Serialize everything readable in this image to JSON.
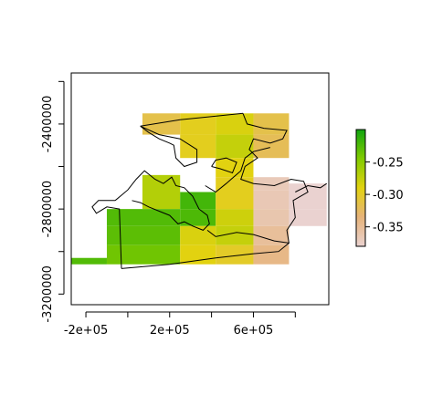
{
  "chart_data": {
    "type": "heatmap",
    "title": "",
    "xlabel": "",
    "ylabel": "",
    "xlim": [
      -270000,
      960000
    ],
    "ylim": [
      -3250000,
      -2160000
    ],
    "x_ticks": [
      {
        "value": -200000,
        "label": "-2e+05"
      },
      {
        "value": 200000,
        "label": "2e+05"
      },
      {
        "value": 600000,
        "label": "6e+05"
      }
    ],
    "x_minor_ticks": [
      0,
      400000,
      800000
    ],
    "y_ticks": [
      {
        "value": -2400000,
        "label": "-2400000"
      },
      {
        "value": -2800000,
        "label": "-2800000"
      },
      {
        "value": -3200000,
        "label": "-3200000"
      }
    ],
    "y_minor_ticks": [
      -2200000,
      -2600000,
      -3000000
    ],
    "legend": {
      "position": "right",
      "min": -0.38,
      "max": -0.2,
      "ticks": [
        {
          "value": -0.25,
          "label": "-0.25"
        },
        {
          "value": -0.3,
          "label": "-0.30"
        },
        {
          "value": -0.35,
          "label": "-0.35"
        }
      ],
      "colors": [
        "#ead2d0",
        "#e6b37a",
        "#e2d210",
        "#82cb00",
        "#10a510"
      ]
    },
    "grid": false,
    "cells": [
      {
        "x0": 70000,
        "x1": 250000,
        "y0": -2450000,
        "y1": -2350000,
        "value": -0.315
      },
      {
        "x0": 250000,
        "x1": 420000,
        "y0": -2450000,
        "y1": -2350000,
        "value": -0.296
      },
      {
        "x0": 420000,
        "x1": 600000,
        "y0": -2450000,
        "y1": -2350000,
        "value": -0.286
      },
      {
        "x0": 600000,
        "x1": 770000,
        "y0": -2450000,
        "y1": -2350000,
        "value": -0.315
      },
      {
        "x0": 250000,
        "x1": 420000,
        "y0": -2560000,
        "y1": -2450000,
        "value": -0.296
      },
      {
        "x0": 420000,
        "x1": 600000,
        "y0": -2560000,
        "y1": -2450000,
        "value": -0.276
      },
      {
        "x0": 600000,
        "x1": 770000,
        "y0": -2560000,
        "y1": -2450000,
        "value": -0.32
      },
      {
        "x0": 420000,
        "x1": 600000,
        "y0": -2650000,
        "y1": -2560000,
        "value": -0.29
      },
      {
        "x0": 70000,
        "x1": 250000,
        "y0": -2800000,
        "y1": -2640000,
        "value": -0.268
      },
      {
        "x0": 250000,
        "x1": 420000,
        "y0": -2800000,
        "y1": -2720000,
        "value": -0.22
      },
      {
        "x0": 420000,
        "x1": 600000,
        "y0": -2800000,
        "y1": -2650000,
        "value": -0.296
      },
      {
        "x0": 600000,
        "x1": 770000,
        "y0": -2710000,
        "y1": -2650000,
        "value": -0.368
      },
      {
        "x0": 600000,
        "x1": 770000,
        "y0": -2800000,
        "y1": -2710000,
        "value": -0.366
      },
      {
        "x0": 770000,
        "x1": 950000,
        "y0": -2800000,
        "y1": -2680000,
        "value": -0.38
      },
      {
        "x0": -100000,
        "x1": 250000,
        "y0": -2880000,
        "y1": -2800000,
        "value": -0.226
      },
      {
        "x0": 250000,
        "x1": 420000,
        "y0": -2880000,
        "y1": -2800000,
        "value": -0.224
      },
      {
        "x0": 420000,
        "x1": 600000,
        "y0": -2880000,
        "y1": -2800000,
        "value": -0.28
      },
      {
        "x0": 600000,
        "x1": 770000,
        "y0": -2880000,
        "y1": -2800000,
        "value": -0.362
      },
      {
        "x0": 770000,
        "x1": 950000,
        "y0": -2880000,
        "y1": -2800000,
        "value": -0.38
      },
      {
        "x0": -100000,
        "x1": 250000,
        "y0": -2970000,
        "y1": -2880000,
        "value": -0.23
      },
      {
        "x0": 250000,
        "x1": 420000,
        "y0": -2970000,
        "y1": -2880000,
        "value": -0.286
      },
      {
        "x0": 420000,
        "x1": 600000,
        "y0": -2970000,
        "y1": -2880000,
        "value": -0.276
      },
      {
        "x0": 600000,
        "x1": 770000,
        "y0": -2970000,
        "y1": -2880000,
        "value": -0.352
      },
      {
        "x0": -100000,
        "x1": 250000,
        "y0": -3060000,
        "y1": -2970000,
        "value": -0.238
      },
      {
        "x0": 250000,
        "x1": 420000,
        "y0": -3060000,
        "y1": -2970000,
        "value": -0.29
      },
      {
        "x0": 420000,
        "x1": 600000,
        "y0": -3060000,
        "y1": -2970000,
        "value": -0.3
      },
      {
        "x0": 600000,
        "x1": 770000,
        "y0": -3060000,
        "y1": -2970000,
        "value": -0.342
      },
      {
        "x0": -270000,
        "x1": -100000,
        "y0": -3060000,
        "y1": -3030000,
        "value": -0.226
      }
    ],
    "outlines": [
      [
        [
          60000,
          -2410000
        ],
        [
          150000,
          -2450000
        ],
        [
          250000,
          -2470000
        ],
        [
          330000,
          -2520000
        ],
        [
          330000,
          -2580000
        ],
        [
          270000,
          -2600000
        ],
        [
          230000,
          -2560000
        ],
        [
          220000,
          -2500000
        ],
        [
          200000,
          -2490000
        ],
        [
          150000,
          -2470000
        ],
        [
          100000,
          -2440000
        ],
        [
          60000,
          -2410000
        ]
      ],
      [
        [
          60000,
          -2410000
        ],
        [
          250000,
          -2380000
        ],
        [
          550000,
          -2350000
        ]
      ],
      [
        [
          550000,
          -2350000
        ],
        [
          570000,
          -2400000
        ],
        [
          650000,
          -2420000
        ],
        [
          760000,
          -2430000
        ],
        [
          740000,
          -2470000
        ],
        [
          680000,
          -2490000
        ],
        [
          600000,
          -2470000
        ],
        [
          580000,
          -2520000
        ],
        [
          620000,
          -2560000
        ],
        [
          560000,
          -2600000
        ],
        [
          540000,
          -2660000
        ],
        [
          600000,
          -2680000
        ],
        [
          700000,
          -2690000
        ],
        [
          780000,
          -2660000
        ],
        [
          840000,
          -2670000
        ],
        [
          860000,
          -2720000
        ],
        [
          790000,
          -2760000
        ],
        [
          800000,
          -2840000
        ],
        [
          760000,
          -2900000
        ],
        [
          770000,
          -2960000
        ],
        [
          720000,
          -3000000
        ],
        [
          600000,
          -3010000
        ]
      ],
      [
        [
          600000,
          -3010000
        ],
        [
          420000,
          -3030000
        ],
        [
          200000,
          -3060000
        ],
        [
          -30000,
          -3080000
        ]
      ],
      [
        [
          -30000,
          -3080000
        ],
        [
          -40000,
          -2800000
        ],
        [
          -100000,
          -2790000
        ],
        [
          -150000,
          -2820000
        ],
        [
          -170000,
          -2790000
        ],
        [
          -140000,
          -2760000
        ],
        [
          -60000,
          -2760000
        ],
        [
          0,
          -2710000
        ],
        [
          40000,
          -2660000
        ],
        [
          80000,
          -2620000
        ],
        [
          130000,
          -2660000
        ],
        [
          170000,
          -2680000
        ],
        [
          210000,
          -2650000
        ],
        [
          230000,
          -2690000
        ],
        [
          270000,
          -2700000
        ],
        [
          310000,
          -2740000
        ],
        [
          340000,
          -2800000
        ],
        [
          380000,
          -2830000
        ],
        [
          390000,
          -2870000
        ],
        [
          360000,
          -2900000
        ],
        [
          310000,
          -2880000
        ],
        [
          270000,
          -2860000
        ],
        [
          240000,
          -2870000
        ],
        [
          200000,
          -2830000
        ],
        [
          150000,
          -2810000
        ],
        [
          100000,
          -2790000
        ],
        [
          60000,
          -2770000
        ],
        [
          20000,
          -2760000
        ]
      ],
      [
        [
          400000,
          -2600000
        ],
        [
          440000,
          -2610000
        ],
        [
          500000,
          -2630000
        ],
        [
          520000,
          -2580000
        ],
        [
          470000,
          -2560000
        ],
        [
          420000,
          -2570000
        ],
        [
          400000,
          -2600000
        ]
      ],
      [
        [
          370000,
          -2690000
        ],
        [
          420000,
          -2720000
        ],
        [
          470000,
          -2680000
        ],
        [
          540000,
          -2620000
        ],
        [
          560000,
          -2560000
        ],
        [
          600000,
          -2530000
        ],
        [
          680000,
          -2510000
        ]
      ],
      [
        [
          380000,
          -2900000
        ],
        [
          420000,
          -2930000
        ],
        [
          520000,
          -2910000
        ],
        [
          600000,
          -2920000
        ],
        [
          700000,
          -2950000
        ],
        [
          770000,
          -2960000
        ]
      ],
      [
        [
          800000,
          -2720000
        ],
        [
          860000,
          -2690000
        ],
        [
          920000,
          -2700000
        ],
        [
          950000,
          -2680000
        ]
      ]
    ]
  }
}
